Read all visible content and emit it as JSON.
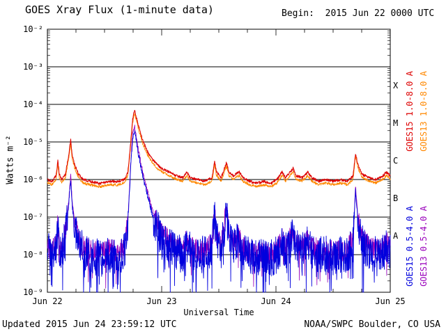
{
  "header": {
    "title": "GOES Xray Flux (1-minute data)",
    "begin_label": "Begin:  2015 Jun 22 0000 UTC"
  },
  "footer": {
    "updated": "Updated 2015 Jun 24 23:59:12 UTC",
    "credit": "NOAA/SWPC Boulder, CO USA"
  },
  "chart_data": {
    "type": "line",
    "title": "GOES Xray Flux (1-minute data)",
    "xlabel": "Universal Time",
    "ylabel": "Watts m⁻²",
    "x_unit": "hours since 2015 Jun 22 0000 UTC",
    "xlim_hours": [
      0,
      72
    ],
    "ylog_range": [
      -9,
      -2
    ],
    "grid": "horizontal-decades",
    "x_ticks": [
      {
        "hour": 0,
        "label": "Jun 22"
      },
      {
        "hour": 24,
        "label": "Jun 23"
      },
      {
        "hour": 48,
        "label": "Jun 24"
      },
      {
        "hour": 72,
        "label": "Jun 25"
      }
    ],
    "x_minor_step_hours": 6,
    "y_ticks": [
      {
        "log": -2,
        "label": "10⁻²"
      },
      {
        "log": -3,
        "label": "10⁻³"
      },
      {
        "log": -4,
        "label": "10⁻⁴"
      },
      {
        "log": -5,
        "label": "10⁻⁵"
      },
      {
        "log": -6,
        "label": "10⁻⁶"
      },
      {
        "log": -7,
        "label": "10⁻⁷"
      },
      {
        "log": -8,
        "label": "10⁻⁸"
      },
      {
        "log": -9,
        "label": "10⁻⁹"
      }
    ],
    "flare_classes": [
      {
        "label": "X",
        "log_center": -3.5
      },
      {
        "label": "M",
        "log_center": -4.5
      },
      {
        "label": "C",
        "log_center": -5.5
      },
      {
        "label": "B",
        "log_center": -6.5
      },
      {
        "label": "A",
        "log_center": -7.5
      }
    ],
    "series": [
      {
        "name": "GOES15 1.0-8.0 A",
        "color": "#dd0000",
        "width": 1.0,
        "noise_lo": 0.05,
        "noise_hi": 0.035,
        "anchors": [
          [
            0,
            -6.0
          ],
          [
            1,
            -6.05
          ],
          [
            1.8,
            -5.9
          ],
          [
            2.2,
            -5.5
          ],
          [
            2.5,
            -5.85
          ],
          [
            3,
            -6.0
          ],
          [
            3.8,
            -5.85
          ],
          [
            4.4,
            -5.4
          ],
          [
            4.9,
            -4.95
          ],
          [
            5.2,
            -5.35
          ],
          [
            5.7,
            -5.6
          ],
          [
            6.5,
            -5.85
          ],
          [
            7.5,
            -6.0
          ],
          [
            9,
            -6.05
          ],
          [
            11,
            -6.1
          ],
          [
            13,
            -6.05
          ],
          [
            15,
            -6.05
          ],
          [
            16.2,
            -6.0
          ],
          [
            16.9,
            -5.8
          ],
          [
            17.5,
            -5.0
          ],
          [
            17.9,
            -4.4
          ],
          [
            18.3,
            -4.16
          ],
          [
            18.6,
            -4.3
          ],
          [
            19.2,
            -4.6
          ],
          [
            20,
            -4.95
          ],
          [
            21,
            -5.25
          ],
          [
            22,
            -5.45
          ],
          [
            23,
            -5.6
          ],
          [
            24,
            -5.7
          ],
          [
            25.5,
            -5.8
          ],
          [
            27,
            -5.9
          ],
          [
            28.5,
            -5.95
          ],
          [
            29.3,
            -5.8
          ],
          [
            30,
            -5.95
          ],
          [
            31.5,
            -6.0
          ],
          [
            33,
            -6.05
          ],
          [
            34.6,
            -5.95
          ],
          [
            35.1,
            -5.5
          ],
          [
            35.5,
            -5.8
          ],
          [
            36.5,
            -5.95
          ],
          [
            37.6,
            -5.55
          ],
          [
            38.1,
            -5.8
          ],
          [
            39,
            -5.9
          ],
          [
            40.3,
            -5.8
          ],
          [
            41,
            -5.95
          ],
          [
            42.5,
            -6.05
          ],
          [
            44,
            -6.1
          ],
          [
            45.5,
            -6.05
          ],
          [
            47,
            -6.1
          ],
          [
            48.2,
            -6.0
          ],
          [
            49.3,
            -5.8
          ],
          [
            50,
            -5.95
          ],
          [
            51.6,
            -5.7
          ],
          [
            52.2,
            -5.9
          ],
          [
            53.5,
            -5.95
          ],
          [
            54.7,
            -5.8
          ],
          [
            55.5,
            -5.95
          ],
          [
            57,
            -6.05
          ],
          [
            58.5,
            -6.0
          ],
          [
            60,
            -6.05
          ],
          [
            61.5,
            -6.0
          ],
          [
            63,
            -6.05
          ],
          [
            64.2,
            -5.9
          ],
          [
            64.7,
            -5.3
          ],
          [
            65.2,
            -5.6
          ],
          [
            66,
            -5.85
          ],
          [
            67.5,
            -5.95
          ],
          [
            69,
            -6.0
          ],
          [
            70.5,
            -5.9
          ],
          [
            71.2,
            -5.8
          ],
          [
            72,
            -5.9
          ]
        ]
      },
      {
        "name": "GOES13 1.0-8.0 A",
        "color": "#ff8800",
        "width": 0.9,
        "noise_lo": 0.05,
        "noise_hi": 0.035,
        "derive_from": 0,
        "offset_log": -0.09
      },
      {
        "name": "GOES15 0.5-4.0 A",
        "color": "#0000dd",
        "width": 0.9,
        "noise_lo": 0.5,
        "noise_hi": 0.08,
        "dip_prob": 0.07,
        "dip_depth": 1.2,
        "anchors": [
          [
            0,
            -7.9
          ],
          [
            1,
            -8.0
          ],
          [
            1.8,
            -7.8
          ],
          [
            2.2,
            -7.3
          ],
          [
            2.5,
            -7.8
          ],
          [
            3,
            -8.0
          ],
          [
            3.8,
            -7.5
          ],
          [
            4.4,
            -6.8
          ],
          [
            4.9,
            -6.0
          ],
          [
            5.2,
            -6.7
          ],
          [
            5.7,
            -7.2
          ],
          [
            6.5,
            -7.7
          ],
          [
            7.5,
            -7.9
          ],
          [
            9,
            -8.0
          ],
          [
            11,
            -8.1
          ],
          [
            13,
            -8.0
          ],
          [
            15,
            -8.05
          ],
          [
            16.2,
            -7.9
          ],
          [
            16.9,
            -7.2
          ],
          [
            17.5,
            -5.7
          ],
          [
            17.9,
            -4.9
          ],
          [
            18.3,
            -4.68
          ],
          [
            18.6,
            -4.9
          ],
          [
            19.2,
            -5.4
          ],
          [
            20,
            -5.9
          ],
          [
            21,
            -6.4
          ],
          [
            22,
            -6.9
          ],
          [
            23,
            -7.3
          ],
          [
            24,
            -7.55
          ],
          [
            25.5,
            -7.75
          ],
          [
            27,
            -7.9
          ],
          [
            28.5,
            -7.95
          ],
          [
            29.3,
            -7.7
          ],
          [
            30,
            -7.9
          ],
          [
            31.5,
            -8.0
          ],
          [
            33,
            -8.0
          ],
          [
            34.6,
            -7.8
          ],
          [
            35.1,
            -7.0
          ],
          [
            35.5,
            -7.6
          ],
          [
            36.5,
            -7.9
          ],
          [
            37.6,
            -6.9
          ],
          [
            38.1,
            -7.5
          ],
          [
            39,
            -7.8
          ],
          [
            40.3,
            -7.6
          ],
          [
            41,
            -7.9
          ],
          [
            42.5,
            -8.05
          ],
          [
            44,
            -8.1
          ],
          [
            45.5,
            -8.05
          ],
          [
            47,
            -8.1
          ],
          [
            48.2,
            -8.0
          ],
          [
            49.3,
            -7.7
          ],
          [
            50,
            -7.9
          ],
          [
            51.6,
            -7.5
          ],
          [
            52.2,
            -7.8
          ],
          [
            53.5,
            -7.9
          ],
          [
            54.7,
            -7.7
          ],
          [
            55.5,
            -7.9
          ],
          [
            57,
            -8.0
          ],
          [
            58.5,
            -8.0
          ],
          [
            60,
            -8.05
          ],
          [
            61.5,
            -8.0
          ],
          [
            63,
            -8.0
          ],
          [
            64.2,
            -7.7
          ],
          [
            64.7,
            -6.3
          ],
          [
            65.2,
            -7.1
          ],
          [
            66,
            -7.7
          ],
          [
            67.5,
            -7.9
          ],
          [
            69,
            -8.0
          ],
          [
            70.5,
            -7.95
          ],
          [
            71.2,
            -7.8
          ],
          [
            72,
            -7.9
          ]
        ]
      },
      {
        "name": "GOES13 0.5-4.0 A",
        "color": "#9900bb",
        "width": 0.8,
        "noise_lo": 0.3,
        "noise_hi": 0.06,
        "dip_prob": 0.05,
        "dip_depth": 0.8,
        "derive_from": 2,
        "offset_log": 0.12
      }
    ]
  }
}
